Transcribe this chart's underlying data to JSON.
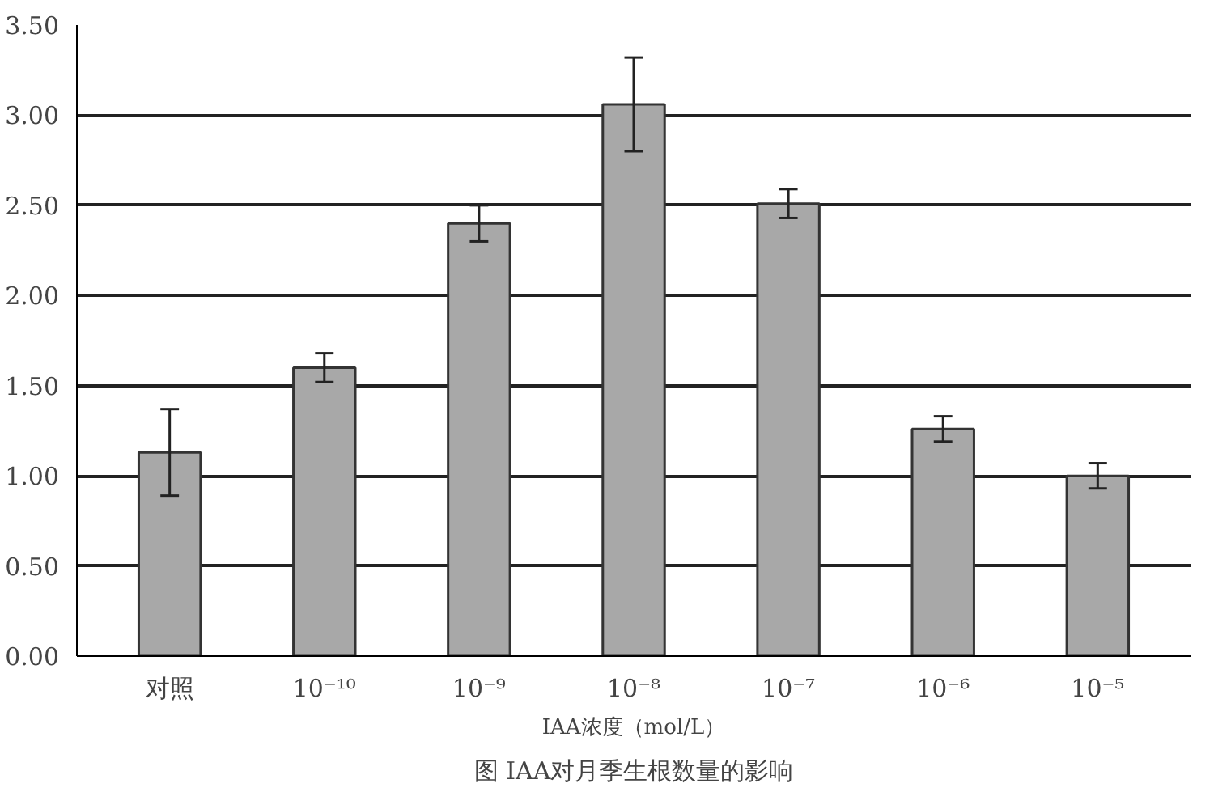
{
  "chart_data": {
    "type": "bar",
    "title": "图 IAA对月季生根数量的影响",
    "xlabel": "IAA浓度（mol/L）",
    "categories": [
      "对照",
      "10⁻¹⁰",
      "10⁻⁹",
      "10⁻⁸",
      "10⁻⁷",
      "10⁻⁶",
      "10⁻⁵"
    ],
    "values": [
      1.13,
      1.6,
      2.4,
      3.06,
      2.51,
      1.26,
      1.0
    ],
    "errors": [
      0.24,
      0.08,
      0.1,
      0.26,
      0.08,
      0.07,
      0.07
    ],
    "color": "#a8a8a8",
    "ylim": [
      0,
      3.5
    ],
    "yticks": [
      {
        "value": 0,
        "label": "0.00"
      },
      {
        "value": 0.5,
        "label": "0.50"
      },
      {
        "value": 1,
        "label": "1.00"
      },
      {
        "value": 1.5,
        "label": "1.50"
      },
      {
        "value": 2,
        "label": "2.00"
      },
      {
        "value": 2.5,
        "label": "2.50"
      },
      {
        "value": 3,
        "label": "3.00"
      },
      {
        "value": 3.5,
        "label": "3.50"
      }
    ],
    "grid": "y"
  }
}
